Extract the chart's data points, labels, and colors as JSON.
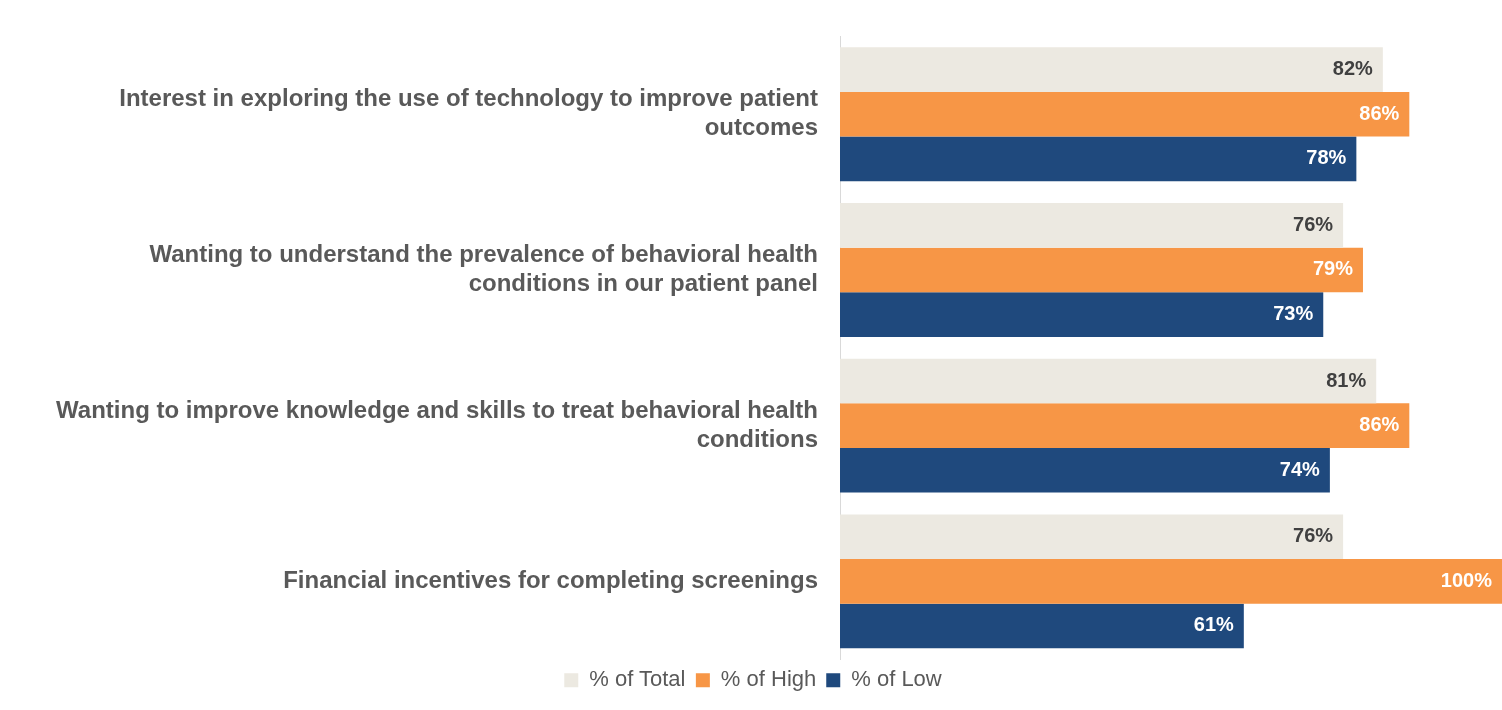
{
  "chart_data": {
    "type": "bar",
    "orientation": "horizontal",
    "legend": "bottom",
    "tick_labels": "y",
    "categories": [
      "Interest in exploring the use of technology to improve patient outcomes",
      "Wanting to understand the prevalence of behavioral health conditions in our patient panel",
      "Wanting to improve knowledge and skills to treat behavioral health conditions",
      "Financial incentives for completing screenings"
    ],
    "series": [
      {
        "name": "% of Total",
        "color": "#ece9e1",
        "values": [
          82,
          76,
          81,
          76
        ],
        "value_labels": [
          "82%",
          "76%",
          "81%",
          "76%"
        ]
      },
      {
        "name": "% of High",
        "color": "#f79646",
        "values": [
          86,
          79,
          86,
          100
        ],
        "value_labels": [
          "86%",
          "79%",
          "86%",
          "100%"
        ]
      },
      {
        "name": "% of Low",
        "color": "#1f497d",
        "values": [
          78,
          73,
          74,
          61
        ],
        "value_labels": [
          "78%",
          "73%",
          "74%",
          "61%"
        ]
      }
    ]
  }
}
